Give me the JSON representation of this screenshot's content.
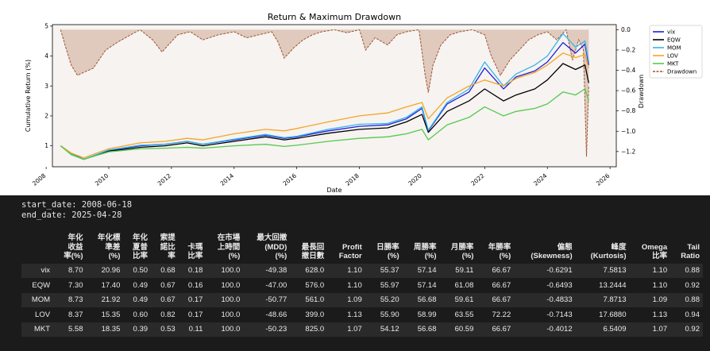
{
  "chart_data": {
    "type": "line",
    "title": "Return & Maximum Drawdown",
    "xlabel": "Date",
    "ylabel": "Cumulative Return (%)",
    "y2label": "Drawdown",
    "xlim": [
      2008.2,
      2026.2
    ],
    "ylim": [
      0.3,
      5.05
    ],
    "y2lim": [
      -1.35,
      0.05
    ],
    "x_ticks": [
      "2008",
      "2010",
      "2012",
      "2014",
      "2016",
      "2018",
      "2020",
      "2022",
      "2024",
      "2026"
    ],
    "y_ticks": [
      "1",
      "2",
      "3",
      "4",
      "5"
    ],
    "y2_ticks": [
      "0.0",
      "−0.2",
      "−0.4",
      "−0.6",
      "−0.8",
      "−1.0",
      "−1.2"
    ],
    "legend_position": "outside-right",
    "series": [
      {
        "name": "vix",
        "color": "#1f1fd6",
        "x": [
          2008.46,
          2008.8,
          2009.2,
          2010,
          2011,
          2011.8,
          2012.5,
          2013,
          2014,
          2015,
          2015.6,
          2016,
          2017,
          2018,
          2018.9,
          2019.5,
          2020.0,
          2020.2,
          2020.8,
          2021.5,
          2022,
          2022.6,
          2023,
          2023.6,
          2024,
          2024.5,
          2024.9,
          2025.2,
          2025.32
        ],
        "y": [
          1.0,
          0.75,
          0.55,
          0.85,
          1.0,
          1.05,
          1.15,
          1.05,
          1.2,
          1.35,
          1.25,
          1.3,
          1.5,
          1.65,
          1.7,
          1.9,
          2.25,
          1.5,
          2.4,
          2.8,
          3.6,
          2.9,
          3.3,
          3.5,
          3.8,
          4.45,
          4.1,
          4.4,
          3.7
        ]
      },
      {
        "name": "EQW",
        "color": "#000000",
        "x": [
          2008.46,
          2008.8,
          2009.2,
          2010,
          2011,
          2011.8,
          2012.5,
          2013,
          2014,
          2015,
          2015.6,
          2016,
          2017,
          2018,
          2018.9,
          2019.5,
          2020.0,
          2020.2,
          2020.8,
          2021.5,
          2022,
          2022.6,
          2023,
          2023.6,
          2024,
          2024.5,
          2024.9,
          2025.2,
          2025.32
        ],
        "y": [
          1.0,
          0.72,
          0.55,
          0.82,
          0.95,
          1.0,
          1.1,
          1.0,
          1.15,
          1.3,
          1.2,
          1.25,
          1.42,
          1.55,
          1.6,
          1.8,
          2.05,
          1.45,
          2.15,
          2.5,
          2.9,
          2.5,
          2.7,
          2.9,
          3.2,
          3.75,
          3.55,
          3.7,
          3.1
        ]
      },
      {
        "name": "MOM",
        "color": "#34b4ea",
        "x": [
          2008.46,
          2008.8,
          2009.2,
          2010,
          2011,
          2011.8,
          2012.5,
          2013,
          2014,
          2015,
          2015.6,
          2016,
          2017,
          2018,
          2018.9,
          2019.5,
          2020.0,
          2020.2,
          2020.8,
          2021.5,
          2022,
          2022.6,
          2023,
          2023.6,
          2024,
          2024.5,
          2024.9,
          2025.2,
          2025.32
        ],
        "y": [
          1.0,
          0.73,
          0.55,
          0.86,
          1.02,
          1.05,
          1.15,
          1.05,
          1.22,
          1.38,
          1.27,
          1.32,
          1.55,
          1.72,
          1.75,
          1.95,
          2.3,
          1.52,
          2.45,
          2.9,
          3.8,
          3.0,
          3.4,
          3.7,
          4.0,
          4.75,
          4.3,
          4.5,
          3.8
        ]
      },
      {
        "name": "LOV",
        "color": "#f5a524",
        "x": [
          2008.46,
          2008.8,
          2009.2,
          2010,
          2011,
          2011.8,
          2012.5,
          2013,
          2014,
          2015,
          2015.6,
          2016,
          2017,
          2018,
          2018.9,
          2019.5,
          2020.0,
          2020.2,
          2020.8,
          2021.5,
          2022,
          2022.6,
          2023,
          2023.6,
          2024,
          2024.5,
          2024.9,
          2025.2,
          2025.32
        ],
        "y": [
          1.0,
          0.76,
          0.6,
          0.9,
          1.1,
          1.15,
          1.25,
          1.2,
          1.4,
          1.55,
          1.5,
          1.58,
          1.8,
          2.0,
          2.1,
          2.3,
          2.45,
          1.9,
          2.6,
          3.0,
          3.2,
          3.0,
          3.25,
          3.45,
          3.7,
          4.1,
          3.95,
          4.05,
          3.6
        ]
      },
      {
        "name": "MKT",
        "color": "#55c94b",
        "x": [
          2008.46,
          2008.8,
          2009.2,
          2010,
          2011,
          2011.8,
          2012.5,
          2013,
          2014,
          2015,
          2015.6,
          2016,
          2017,
          2018,
          2018.9,
          2019.5,
          2020.0,
          2020.2,
          2020.8,
          2021.5,
          2022,
          2022.6,
          2023,
          2023.6,
          2024,
          2024.5,
          2024.9,
          2025.2,
          2025.32
        ],
        "y": [
          1.0,
          0.7,
          0.55,
          0.8,
          0.9,
          0.92,
          0.95,
          0.92,
          1.0,
          1.05,
          0.98,
          1.02,
          1.15,
          1.25,
          1.3,
          1.4,
          1.55,
          1.2,
          1.7,
          1.95,
          2.3,
          2.0,
          2.15,
          2.25,
          2.4,
          2.8,
          2.7,
          2.9,
          2.5
        ]
      }
    ],
    "drawdown": {
      "name": "Drawdown",
      "color": "#a0522d",
      "fill": "#d9bfb0",
      "x": [
        2008.46,
        2008.6,
        2008.8,
        2009.0,
        2009.2,
        2009.5,
        2009.9,
        2010.3,
        2010.7,
        2011.0,
        2011.4,
        2011.7,
        2011.9,
        2012.2,
        2012.6,
        2013.0,
        2013.5,
        2014.0,
        2014.4,
        2014.8,
        2015.2,
        2015.4,
        2015.6,
        2015.9,
        2016.2,
        2016.5,
        2016.8,
        2017.2,
        2017.6,
        2018.0,
        2018.2,
        2018.5,
        2018.9,
        2019.2,
        2019.5,
        2019.9,
        2020.1,
        2020.2,
        2020.35,
        2020.6,
        2020.9,
        2021.2,
        2021.6,
        2022.0,
        2022.2,
        2022.5,
        2022.8,
        2023.1,
        2023.4,
        2023.7,
        2024.0,
        2024.3,
        2024.6,
        2024.8,
        2025.0,
        2025.15,
        2025.25,
        2025.32
      ],
      "y": [
        0.0,
        -0.15,
        -0.35,
        -0.45,
        -0.42,
        -0.38,
        -0.2,
        -0.12,
        -0.05,
        0.0,
        -0.1,
        -0.22,
        -0.15,
        -0.05,
        -0.02,
        -0.1,
        -0.05,
        -0.02,
        -0.08,
        -0.05,
        -0.02,
        -0.12,
        -0.28,
        -0.18,
        -0.1,
        -0.05,
        -0.02,
        0.0,
        -0.03,
        0.0,
        -0.2,
        -0.08,
        -0.15,
        -0.05,
        -0.02,
        0.0,
        -0.45,
        -0.62,
        -0.35,
        -0.15,
        -0.05,
        -0.02,
        0.0,
        -0.05,
        -0.25,
        -0.45,
        -0.3,
        -0.2,
        -0.1,
        -0.05,
        -0.02,
        -0.1,
        0.0,
        -0.3,
        -0.1,
        -0.2,
        -1.25,
        -0.55
      ]
    }
  },
  "output": {
    "start_label": "start_date: 2008-06-18",
    "end_label": "end_date: 2025-04-28",
    "headers": [
      "",
      "年化\n收益\n率(%)",
      "年化標\n準差\n(%)",
      "年化\n夏普\n比率",
      "索提\n諾比\n率",
      "卡瑪\n比率",
      "在市場\n上時間\n(%)",
      "最大回撤\n(MDD)\n(%)",
      "最長回\n撤日數",
      "Profit\nFactor",
      "日勝率\n(%)",
      "周勝率\n(%)",
      "月勝率\n(%)",
      "年勝率\n(%)",
      "偏態\n(Skewness)",
      "峰度\n(Kurtosis)",
      "Omega\n比率",
      "Tail\nRatio"
    ],
    "rows": [
      [
        "vix",
        "8.70",
        "20.96",
        "0.50",
        "0.68",
        "0.18",
        "100.0",
        "-49.38",
        "628.0",
        "1.10",
        "55.37",
        "57.14",
        "59.11",
        "66.67",
        "-0.6291",
        "7.5813",
        "1.10",
        "0.88"
      ],
      [
        "EQW",
        "7.30",
        "17.40",
        "0.49",
        "0.67",
        "0.16",
        "100.0",
        "-47.00",
        "576.0",
        "1.10",
        "55.97",
        "57.14",
        "61.08",
        "66.67",
        "-0.6493",
        "13.2444",
        "1.10",
        "0.92"
      ],
      [
        "MOM",
        "8.73",
        "21.92",
        "0.49",
        "0.67",
        "0.17",
        "100.0",
        "-50.77",
        "561.0",
        "1.09",
        "55.20",
        "56.68",
        "59.61",
        "66.67",
        "-0.4833",
        "7.8713",
        "1.09",
        "0.88"
      ],
      [
        "LOV",
        "8.37",
        "15.35",
        "0.60",
        "0.82",
        "0.17",
        "100.0",
        "-48.66",
        "399.0",
        "1.13",
        "55.90",
        "58.99",
        "63.55",
        "72.22",
        "-0.7143",
        "17.6880",
        "1.13",
        "0.94"
      ],
      [
        "MKT",
        "5.58",
        "18.35",
        "0.39",
        "0.53",
        "0.11",
        "100.0",
        "-50.23",
        "825.0",
        "1.07",
        "54.12",
        "56.68",
        "60.59",
        "66.67",
        "-0.4012",
        "6.5409",
        "1.07",
        "0.92"
      ]
    ]
  }
}
